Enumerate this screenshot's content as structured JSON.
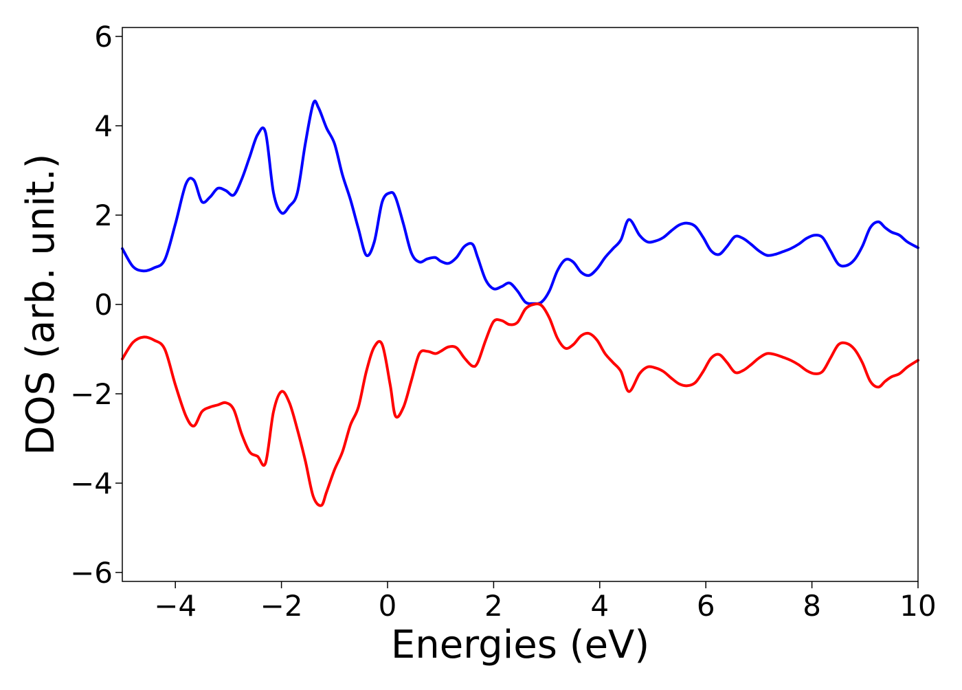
{
  "chart_data": {
    "type": "line",
    "xlabel": "Energies (eV)",
    "ylabel": "DOS (arb. unit.)",
    "xlim": [
      -5,
      10
    ],
    "ylim": [
      -6.2,
      6.2
    ],
    "x_ticks": [
      -4,
      -2,
      0,
      2,
      4,
      6,
      8,
      10
    ],
    "y_ticks": [
      -6,
      -4,
      -2,
      0,
      2,
      4,
      6
    ],
    "x_tick_labels": [
      "−4",
      "−2",
      "0",
      "2",
      "4",
      "6",
      "8",
      "10"
    ],
    "y_tick_labels": [
      "−6",
      "−4",
      "−2",
      "0",
      "2",
      "4",
      "6"
    ],
    "grid": false,
    "legend": "none",
    "colors": {
      "series_up": "#0000ff",
      "series_down": "#ff0000",
      "axis": "#000000",
      "background": "#ffffff"
    },
    "series": [
      {
        "color": "#0000ff",
        "x": [
          -5.0,
          -4.8,
          -4.6,
          -4.4,
          -4.2,
          -4.0,
          -3.8,
          -3.65,
          -3.5,
          -3.35,
          -3.2,
          -3.05,
          -2.9,
          -2.75,
          -2.6,
          -2.45,
          -2.3,
          -2.15,
          -2.0,
          -1.85,
          -1.7,
          -1.55,
          -1.4,
          -1.3,
          -1.15,
          -1.0,
          -0.85,
          -0.7,
          -0.55,
          -0.4,
          -0.25,
          -0.1,
          0.05,
          0.15,
          0.3,
          0.45,
          0.6,
          0.75,
          0.9,
          1.0,
          1.15,
          1.3,
          1.45,
          1.6,
          1.7,
          1.85,
          2.0,
          2.15,
          2.3,
          2.45,
          2.6,
          2.75,
          2.9,
          3.05,
          3.2,
          3.35,
          3.5,
          3.65,
          3.8,
          3.95,
          4.1,
          4.25,
          4.4,
          4.55,
          4.75,
          4.9,
          5.05,
          5.2,
          5.35,
          5.5,
          5.65,
          5.8,
          5.95,
          6.1,
          6.25,
          6.4,
          6.55,
          6.7,
          6.85,
          7.0,
          7.15,
          7.3,
          7.45,
          7.6,
          7.75,
          7.9,
          8.05,
          8.2,
          8.35,
          8.5,
          8.65,
          8.8,
          8.95,
          9.1,
          9.25,
          9.38,
          9.5,
          9.65,
          9.8,
          10.0
        ],
        "y": [
          1.25,
          0.85,
          0.75,
          0.82,
          1.0,
          1.8,
          2.7,
          2.78,
          2.3,
          2.4,
          2.6,
          2.55,
          2.45,
          2.8,
          3.3,
          3.8,
          3.85,
          2.5,
          2.05,
          2.2,
          2.5,
          3.6,
          4.5,
          4.4,
          3.95,
          3.6,
          2.9,
          2.35,
          1.7,
          1.1,
          1.4,
          2.3,
          2.5,
          2.4,
          1.8,
          1.15,
          0.95,
          1.02,
          1.05,
          0.97,
          0.92,
          1.05,
          1.3,
          1.35,
          1.05,
          0.55,
          0.35,
          0.4,
          0.48,
          0.3,
          0.05,
          0.02,
          0.05,
          0.3,
          0.75,
          1.0,
          0.95,
          0.72,
          0.65,
          0.8,
          1.05,
          1.25,
          1.45,
          1.9,
          1.55,
          1.4,
          1.42,
          1.5,
          1.65,
          1.78,
          1.82,
          1.75,
          1.5,
          1.2,
          1.12,
          1.3,
          1.52,
          1.48,
          1.35,
          1.2,
          1.1,
          1.12,
          1.18,
          1.25,
          1.35,
          1.48,
          1.55,
          1.5,
          1.2,
          0.9,
          0.87,
          1.0,
          1.3,
          1.72,
          1.85,
          1.72,
          1.62,
          1.55,
          1.4,
          1.27
        ]
      },
      {
        "color": "#ff0000",
        "x": [
          -5.0,
          -4.8,
          -4.6,
          -4.4,
          -4.2,
          -4.0,
          -3.8,
          -3.65,
          -3.5,
          -3.35,
          -3.2,
          -3.05,
          -2.9,
          -2.75,
          -2.6,
          -2.45,
          -2.3,
          -2.15,
          -2.0,
          -1.85,
          -1.7,
          -1.55,
          -1.4,
          -1.25,
          -1.15,
          -1.0,
          -0.85,
          -0.7,
          -0.55,
          -0.4,
          -0.25,
          -0.1,
          0.05,
          0.15,
          0.3,
          0.45,
          0.6,
          0.75,
          0.9,
          1.0,
          1.15,
          1.3,
          1.45,
          1.6,
          1.7,
          1.85,
          2.0,
          2.15,
          2.3,
          2.45,
          2.6,
          2.75,
          2.9,
          3.05,
          3.2,
          3.35,
          3.5,
          3.65,
          3.8,
          3.95,
          4.1,
          4.25,
          4.4,
          4.55,
          4.75,
          4.9,
          5.05,
          5.2,
          5.35,
          5.5,
          5.65,
          5.8,
          5.95,
          6.1,
          6.25,
          6.4,
          6.55,
          6.7,
          6.85,
          7.0,
          7.15,
          7.3,
          7.45,
          7.6,
          7.75,
          7.9,
          8.05,
          8.2,
          8.35,
          8.5,
          8.65,
          8.8,
          8.95,
          9.1,
          9.25,
          9.38,
          9.5,
          9.65,
          9.8,
          10.0
        ],
        "y": [
          -1.22,
          -0.85,
          -0.73,
          -0.8,
          -1.0,
          -1.8,
          -2.5,
          -2.72,
          -2.4,
          -2.3,
          -2.25,
          -2.2,
          -2.35,
          -2.9,
          -3.3,
          -3.4,
          -3.55,
          -2.4,
          -1.95,
          -2.2,
          -2.8,
          -3.5,
          -4.3,
          -4.5,
          -4.2,
          -3.7,
          -3.3,
          -2.7,
          -2.3,
          -1.5,
          -0.95,
          -0.9,
          -1.8,
          -2.5,
          -2.3,
          -1.7,
          -1.1,
          -1.05,
          -1.1,
          -1.05,
          -0.95,
          -0.97,
          -1.2,
          -1.38,
          -1.3,
          -0.8,
          -0.38,
          -0.36,
          -0.45,
          -0.4,
          -0.1,
          0.0,
          -0.02,
          -0.3,
          -0.75,
          -0.98,
          -0.9,
          -0.7,
          -0.65,
          -0.8,
          -1.1,
          -1.3,
          -1.5,
          -1.95,
          -1.55,
          -1.4,
          -1.42,
          -1.5,
          -1.65,
          -1.78,
          -1.82,
          -1.75,
          -1.5,
          -1.2,
          -1.12,
          -1.3,
          -1.52,
          -1.48,
          -1.35,
          -1.2,
          -1.1,
          -1.12,
          -1.18,
          -1.25,
          -1.35,
          -1.48,
          -1.55,
          -1.5,
          -1.2,
          -0.9,
          -0.87,
          -1.0,
          -1.3,
          -1.72,
          -1.85,
          -1.72,
          -1.62,
          -1.55,
          -1.4,
          -1.25
        ]
      }
    ]
  }
}
